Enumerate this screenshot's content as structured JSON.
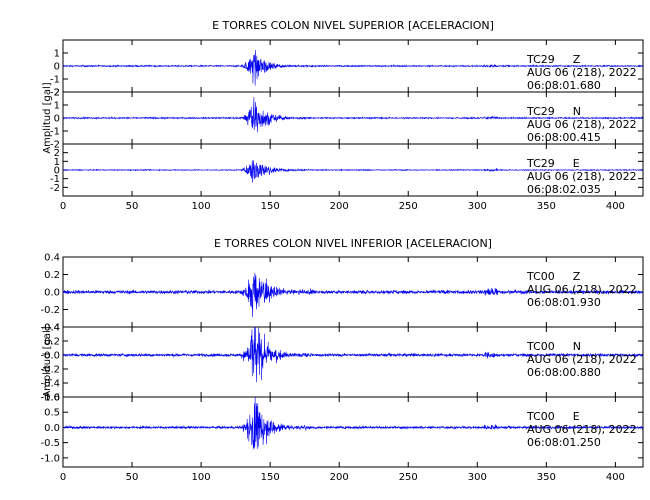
{
  "chart_data": [
    {
      "type": "line",
      "title": "E TORRES COLON NIVEL SUPERIOR [ACELERACION]",
      "ylabel": "Amplitud  [gal]",
      "xlim": [
        0,
        420
      ],
      "x_ticks": [
        0,
        50,
        100,
        150,
        200,
        250,
        300,
        350,
        400
      ],
      "x_tick_labels": [
        "0",
        "50",
        "100",
        "150",
        "200",
        "250",
        "300",
        "350",
        "400"
      ],
      "grid": false,
      "series": [
        {
          "station": "TC29",
          "component": "Z",
          "date": "AUG 06 (218), 2022",
          "time": "06:08:01.680",
          "ylim": [
            -2,
            2
          ],
          "y_ticks": [
            -2,
            -1,
            0,
            1
          ],
          "y_tick_labels": [
            "-2",
            "-1",
            "0",
            "1"
          ],
          "noise_amp": 0.05,
          "event_start": 128,
          "event_peak_time": 138,
          "peak_amp": 1.6
        },
        {
          "station": "TC29",
          "component": "N",
          "date": "AUG 06 (218), 2022",
          "time": "06:08:00.415",
          "ylim": [
            -2,
            2
          ],
          "y_ticks": [
            -2,
            -1,
            0,
            1,
            2
          ],
          "y_tick_labels": [
            "-2",
            "-1",
            "0",
            "1",
            "2"
          ],
          "noise_amp": 0.05,
          "event_start": 128,
          "event_peak_time": 138,
          "peak_amp": 1.8
        },
        {
          "station": "TC29",
          "component": "E",
          "date": "AUG 06 (218), 2022",
          "time": "06:08:02.035",
          "ylim": [
            -3,
            3
          ],
          "y_ticks": [
            -2,
            -1,
            0,
            1,
            2
          ],
          "y_tick_labels": [
            "-2",
            "-1",
            "0",
            "1",
            "2"
          ],
          "noise_amp": 0.05,
          "event_start": 128,
          "event_peak_time": 138,
          "peak_amp": 2.0
        }
      ]
    },
    {
      "type": "line",
      "title": "E TORRES COLON NIVEL INFERIOR [ACELERACION]",
      "ylabel": "Amplitud  [gal]",
      "xlim": [
        0,
        420
      ],
      "x_ticks": [
        0,
        50,
        100,
        150,
        200,
        250,
        300,
        350,
        400
      ],
      "x_tick_labels": [
        "0",
        "50",
        "100",
        "150",
        "200",
        "250",
        "300",
        "350",
        "400"
      ],
      "grid": false,
      "series": [
        {
          "station": "TC00",
          "component": "Z",
          "date": "AUG 06 (218), 2022",
          "time": "06:08:01.930",
          "ylim": [
            -0.4,
            0.4
          ],
          "y_ticks": [
            -0.4,
            -0.2,
            0.0,
            0.2,
            0.4
          ],
          "y_tick_labels": [
            "-0.4",
            "-0.2",
            "0.0",
            "0.2",
            "0.4"
          ],
          "noise_amp": 0.02,
          "event_start": 128,
          "event_peak_time": 138,
          "peak_amp": 0.38
        },
        {
          "station": "TC00",
          "component": "N",
          "date": "AUG 06 (218), 2022",
          "time": "06:08:00.880",
          "ylim": [
            -0.6,
            0.4
          ],
          "y_ticks": [
            -0.6,
            -0.4,
            -0.2,
            0.0,
            0.2,
            0.4
          ],
          "y_tick_labels": [
            "-0.6",
            "-0.4",
            "-0.2",
            "-0.0",
            "0.2",
            "0.4"
          ],
          "noise_amp": 0.02,
          "event_start": 128,
          "event_peak_time": 138,
          "peak_amp": 0.6
        },
        {
          "station": "TC00",
          "component": "E",
          "date": "AUG 06 (218), 2022",
          "time": "06:08:01.250",
          "ylim": [
            -1.3,
            1.0
          ],
          "y_ticks": [
            -1.0,
            -0.5,
            0.0,
            0.5,
            1.0
          ],
          "y_tick_labels": [
            "-1.0",
            "-0.5",
            "0.0",
            "0.5",
            "1.0"
          ],
          "noise_amp": 0.04,
          "event_start": 128,
          "event_peak_time": 138,
          "peak_amp": 1.3
        }
      ]
    }
  ],
  "colors": {
    "trace": "#0000ee",
    "axis": "#000000",
    "background": "#ffffff"
  }
}
